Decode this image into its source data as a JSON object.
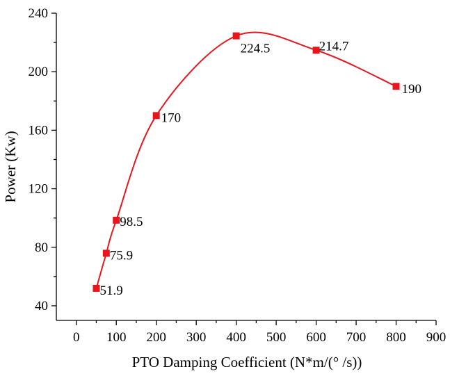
{
  "chart_data": {
    "type": "line",
    "title": "",
    "xlabel": "PTO Damping Coefficient (N*m/(° /s))",
    "ylabel": "Power (Kw)",
    "xlim": [
      -50,
      900
    ],
    "ylim": [
      30,
      240
    ],
    "x_ticks": [
      0,
      100,
      200,
      300,
      400,
      500,
      600,
      700,
      800,
      900
    ],
    "y_ticks": [
      40,
      80,
      120,
      160,
      200,
      240
    ],
    "grid": false,
    "legend": "none",
    "line_color": "#e8161c",
    "marker_color": "#e8161c",
    "marker": "square",
    "series": [
      {
        "x": [
          50,
          75,
          100,
          200,
          400,
          600,
          800
        ],
        "y": [
          51.9,
          75.9,
          98.5,
          170,
          224.5,
          214.7,
          190
        ],
        "labels": [
          "51.9",
          "75.9",
          "98.5",
          "170",
          "224.5",
          "214.7",
          "190"
        ]
      }
    ]
  }
}
